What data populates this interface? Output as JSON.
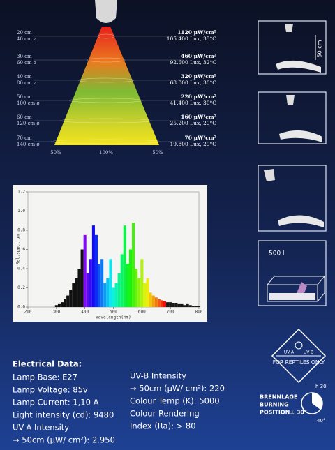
{
  "cone": {
    "rows": [
      {
        "distance": "20 cm",
        "diameter": "40 cm ø",
        "uv": "1120 µW/cm²",
        "lux": "105.400 Lux, 35°C"
      },
      {
        "distance": "30 cm",
        "diameter": "60 cm ø",
        "uv": "460 µW/cm²",
        "lux": "92.600 Lux, 32°C"
      },
      {
        "distance": "40 cm",
        "diameter": "80 cm ø",
        "uv": "320 µW/cm²",
        "lux": "68.000 Lux, 30°C"
      },
      {
        "distance": "50 cm",
        "diameter": "100 cm ø",
        "uv": "220 µW/cm²",
        "lux": "41.400 Lux, 30°C"
      },
      {
        "distance": "60 cm",
        "diameter": "120 cm ø",
        "uv": "160 µW/cm²",
        "lux": "25.200 Lux, 29°C"
      },
      {
        "distance": "70 cm",
        "diameter": "140 cm ø",
        "uv": "70 µW/cm²",
        "lux": "19.800 Lux, 29°C"
      }
    ],
    "percentages": [
      "50%",
      "100%",
      "50%"
    ]
  },
  "spectrum": {
    "y_label": "Rel.spectrum",
    "x_label": "Wavelength(nm)",
    "xlim": [
      200,
      800
    ],
    "ylim": [
      0,
      1.2
    ],
    "xticks": [
      200,
      300,
      400,
      500,
      600,
      700,
      800
    ],
    "yticks": [
      {
        "value": 0,
        "label": "0.0"
      },
      0.2,
      0.4,
      0.6,
      0.8,
      {
        "value": 1,
        "label": "1.0"
      },
      1.2
    ],
    "x": [
      300,
      310,
      320,
      330,
      340,
      350,
      360,
      370,
      380,
      390,
      400,
      410,
      420,
      430,
      440,
      450,
      460,
      470,
      480,
      490,
      500,
      510,
      520,
      530,
      540,
      550,
      560,
      570,
      580,
      590,
      600,
      610,
      620,
      630,
      640,
      650,
      660,
      670,
      680,
      690,
      700,
      710,
      720,
      730,
      740,
      750,
      760,
      770,
      780,
      790,
      800
    ],
    "values": [
      0.02,
      0.03,
      0.05,
      0.08,
      0.12,
      0.18,
      0.25,
      0.3,
      0.4,
      0.6,
      0.75,
      0.35,
      0.5,
      0.85,
      0.75,
      0.45,
      0.5,
      0.25,
      0.3,
      0.5,
      0.2,
      0.25,
      0.35,
      0.55,
      0.85,
      0.45,
      0.6,
      0.88,
      0.4,
      0.3,
      0.5,
      0.25,
      0.3,
      0.15,
      0.12,
      0.1,
      0.08,
      0.07,
      0.06,
      0.05,
      0.05,
      0.04,
      0.04,
      0.03,
      0.03,
      0.02,
      0.03,
      0.02,
      0.01,
      0.01,
      0.01
    ]
  },
  "illustrations": {
    "distance": "50 cm",
    "tank": "500 l"
  },
  "badge": {
    "uva": "UV-A",
    "uvb": "UV-B",
    "caption": "FOR REPTILES ONLY"
  },
  "electrical": {
    "title": "Electrical Data:",
    "left": [
      "Lamp Base: E27",
      "Lamp Voltage: 85v",
      "Lamp Current: 1,10 A",
      "Light intensity (cd): 9480",
      "UV-A Intensity",
      "→ 50cm (µW/ cm²): 2.950"
    ],
    "right": [
      "UV-B Intensity",
      "→ 50cm (µW/ cm²): 220",
      "Colour Temp (K): 5000",
      "Colour Rendering",
      "Index (Ra): > 80"
    ]
  },
  "burning": {
    "lines": [
      "BRENNLAGE",
      "BURNING",
      "POSITION± 30°"
    ],
    "height": "h 30",
    "angle": "40°"
  }
}
